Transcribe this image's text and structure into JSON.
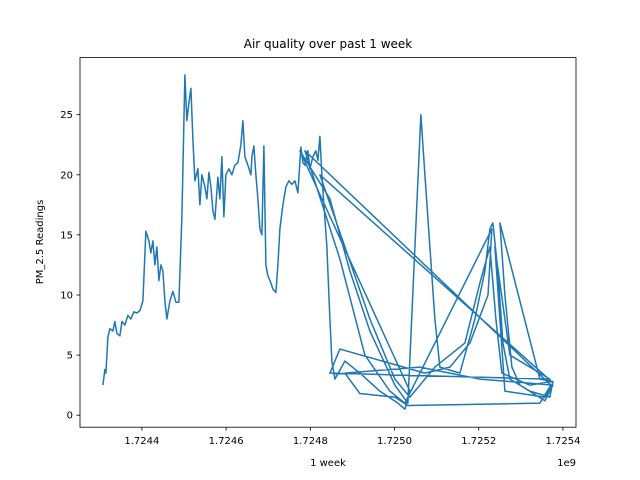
{
  "chart_data": {
    "type": "line",
    "title": "Air quality over past 1 week",
    "x_label": "1 week",
    "y_label": "PM_2.5 Readings",
    "x_offset_label": "1e9",
    "xlim": [
      1724253000,
      1725431000
    ],
    "ylim": [
      -1.0,
      29.75
    ],
    "xticks": [
      {
        "value": 1724400000,
        "label": "1.7244"
      },
      {
        "value": 1724600000,
        "label": "1.7246"
      },
      {
        "value": 1724800000,
        "label": "1.7248"
      },
      {
        "value": 1725000000,
        "label": "1.7250"
      },
      {
        "value": 1725200000,
        "label": "1.7252"
      },
      {
        "value": 1725400000,
        "label": "1.7254"
      }
    ],
    "yticks": [
      0,
      5,
      10,
      15,
      20,
      25
    ],
    "grid": false,
    "series": [
      {
        "color": "#1f77b4",
        "x": [
          1724307375,
          1724312125,
          1724314500,
          1724319250,
          1724324000,
          1724331125,
          1724335875,
          1724340625,
          1724347750,
          1724352500,
          1724359625,
          1724366750,
          1724373875,
          1724381000,
          1724388125,
          1724395250,
          1724402375,
          1724409500,
          1724416625,
          1724421375,
          1724426125,
          1724430875,
          1724435625,
          1724440375,
          1724445125,
          1724449875,
          1724454625,
          1724459375,
          1724466500,
          1724473625,
          1724480750,
          1724487875,
          1724495000,
          1724502125,
          1724506875,
          1724511625,
          1724516375,
          1724521125,
          1724525875,
          1724533000,
          1724537750,
          1724542500,
          1724549625,
          1724554375,
          1724559125,
          1724563875,
          1724568625,
          1724573375,
          1724580500,
          1724585250,
          1724590000,
          1724594750,
          1724599500,
          1724606625,
          1724613750,
          1724620875,
          1724628000,
          1724635125,
          1724639875,
          1724644625,
          1724651750,
          1724658875,
          1724661250,
          1724666000,
          1724670750,
          1724675500,
          1724680250,
          1724685000,
          1724689750,
          1724694500,
          1724699250,
          1724706375,
          1724711125,
          1724718250,
          1724723000,
          1724727750,
          1724734875,
          1724742000,
          1724749125,
          1724756250,
          1724763375,
          1724770500,
          1724777625,
          1724782375,
          1724787125,
          1724794250,
          1724799000,
          1724806125,
          1724813250,
          1724818000,
          1724822750,
          1724827500,
          1724832250,
          1724839375,
          1724846500,
          1724851250,
          1724858375,
          1724882125,
          1724917750,
          1724965250,
          1725008000,
          1725024625,
          1725036500,
          1724775250,
          1724846500,
          1724894000,
          1724941500,
          1725000875,
          1725031750,
          1725062625,
          1725072125,
          1725084000,
          1725095875,
          1725107750,
          1725155250,
          1725190875,
          1725214625,
          1725226500,
          1725233625,
          1725245500,
          1725257375,
          1725274000,
          1725321500,
          1725369000,
          1725376125,
          1725345250,
          1725250250,
          1725262125,
          1725278750,
          1725297750,
          1725357125,
          1725376125,
          1725202750,
          1725060250,
          1724882125,
          1724917750,
          1725000875,
          1725031750,
          1725345250,
          1725371375,
          1724787125,
          1724870250,
          1724929625,
          1724989000,
          1725024625,
          1725231250,
          1725222000,
          1725179000,
          1725131500,
          1725072125,
          1724870250,
          1724846500,
          1725369000,
          1725274000,
          1725238375,
          1725250250,
          1725262125,
          1725357125,
          1725376125,
          1724822750,
          1724882125,
          1724941500,
          1725000875,
          1725036500,
          1725095875,
          1725167125,
          1725202750,
          1725226500,
          1725240750,
          1725255000,
          1725321500,
          1725373750
        ],
        "values": [
          2.5,
          3.8,
          3.5,
          6.5,
          7.2,
          7.0,
          7.8,
          6.8,
          6.6,
          7.8,
          7.5,
          8.3,
          8.0,
          8.6,
          8.5,
          8.7,
          9.5,
          15.3,
          14.5,
          13.5,
          14.5,
          12.5,
          14.0,
          11.2,
          12.5,
          12.0,
          9.5,
          8.0,
          9.5,
          10.3,
          9.4,
          9.4,
          16.5,
          28.3,
          24.5,
          26.0,
          27.2,
          23.0,
          19.5,
          20.5,
          17.5,
          20.0,
          19.0,
          18.0,
          20.2,
          19.0,
          17.0,
          16.3,
          19.8,
          18.0,
          21.5,
          16.5,
          20.0,
          20.5,
          20.0,
          20.8,
          21.0,
          22.5,
          24.5,
          21.5,
          20.8,
          20.0,
          21.5,
          22.4,
          20.0,
          18.0,
          15.5,
          15.0,
          22.4,
          12.5,
          11.6,
          11.0,
          10.5,
          10.2,
          12.5,
          15.5,
          17.5,
          19.0,
          19.5,
          19.2,
          19.5,
          18.5,
          22.3,
          21.0,
          20.8,
          22.0,
          20.5,
          21.5,
          22.0,
          21.2,
          23.2,
          20.0,
          17.5,
          14.0,
          8.0,
          4.5,
          3.0,
          4.5,
          3.5,
          2.0,
          1.0,
          0.5,
          2.0,
          22.0,
          18.0,
          12.0,
          7.0,
          2.5,
          1.0,
          25.0,
          20.0,
          14.0,
          8.0,
          4.0,
          3.5,
          8.0,
          12.0,
          15.5,
          16.0,
          12.0,
          6.0,
          3.0,
          2.0,
          1.5,
          2.8,
          3.0,
          16.0,
          10.0,
          4.0,
          2.5,
          1.2,
          2.5,
          3.0,
          4.0,
          3.5,
          1.8,
          1.5,
          0.8,
          1.0,
          2.5,
          22.0,
          13.0,
          5.0,
          2.0,
          1.0,
          15.5,
          10.0,
          6.0,
          4.0,
          3.5,
          5.5,
          3.5,
          3.0,
          5.0,
          14.0,
          8.0,
          2.0,
          1.5,
          2.7,
          20.0,
          14.0,
          8.0,
          3.0,
          1.5,
          4.0,
          6.0,
          11.0,
          14.0,
          8.0,
          3.5,
          2.5,
          2.8
        ]
      }
    ]
  }
}
